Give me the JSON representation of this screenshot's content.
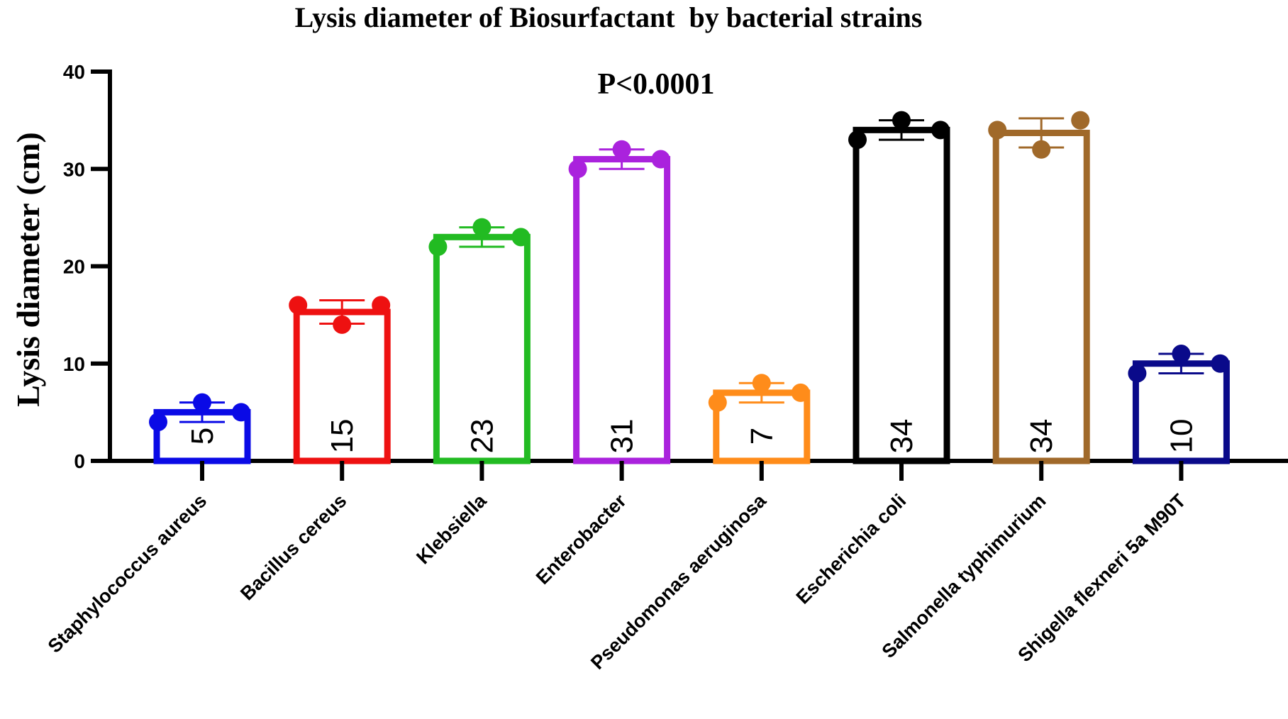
{
  "chart_data": {
    "type": "bar",
    "title": "Lysis diameter of Biosurfactant  by bacterial strains",
    "annotation": "P<0.0001",
    "xlabel": "",
    "ylabel": "Lysis diameter (cm)",
    "ylim": [
      0,
      40
    ],
    "yticks": [
      0,
      10,
      20,
      30,
      40
    ],
    "categories": [
      "Staphylococcus aureus",
      "Bacillus cereus",
      "Klebsiella",
      "Enterobacter",
      "Pseudomonas aeruginosa",
      "Escherichia coli",
      "Salmonella typhimurium",
      "Shigella flexneri 5a M90T"
    ],
    "values": [
      5,
      15.3,
      23,
      31,
      7,
      34,
      33.7,
      10
    ],
    "value_labels": [
      "5",
      "15",
      "23",
      "31",
      "7",
      "34",
      "34",
      "10"
    ],
    "error": [
      1,
      1.2,
      1,
      1,
      1,
      1,
      1.5,
      1
    ],
    "points": [
      [
        4,
        6,
        5
      ],
      [
        16,
        14,
        16
      ],
      [
        22,
        24,
        23
      ],
      [
        30,
        32,
        31
      ],
      [
        6,
        8,
        7
      ],
      [
        33,
        35,
        34
      ],
      [
        34,
        32,
        35
      ],
      [
        9,
        11,
        10
      ]
    ],
    "colors": [
      "#0a0ae6",
      "#ee1111",
      "#22bb22",
      "#aa22dd",
      "#ff8c1a",
      "#000000",
      "#a0692a",
      "#0a0a8a"
    ],
    "grid": false,
    "legend": "none"
  }
}
